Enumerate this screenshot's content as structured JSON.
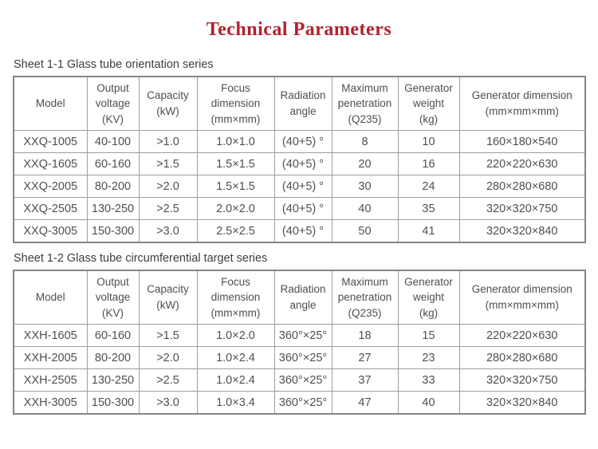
{
  "page": {
    "title": "Technical Parameters",
    "title_color": "#b41f2e",
    "table_text_color": "#4f4f4f",
    "table_border_color": "#9e9e9e"
  },
  "sheets": [
    {
      "caption": "Sheet 1-1 Glass tube orientation series",
      "headers": [
        "Model",
        "Output\nvoltage\n(KV)",
        "Capacity\n(kW)",
        "Focus\ndimension\n(mm×mm)",
        "Radiation\nangle",
        "Maximum\npenetration\n(Q235)",
        "Generator\nweight\n(kg)",
        "Generator dimension\n(mm×mm×mm)"
      ],
      "rows": [
        [
          "XXQ-1005",
          "40-100",
          ">1.0",
          "1.0×1.0",
          "(40+5) °",
          "8",
          "10",
          "160×180×540"
        ],
        [
          "XXQ-1605",
          "60-160",
          ">1.5",
          "1.5×1.5",
          "(40+5) °",
          "20",
          "16",
          "220×220×630"
        ],
        [
          "XXQ-2005",
          "80-200",
          ">2.0",
          "1.5×1.5",
          "(40+5) °",
          "30",
          "24",
          "280×280×680"
        ],
        [
          "XXQ-2505",
          "130-250",
          ">2.5",
          "2.0×2.0",
          "(40+5) °",
          "40",
          "35",
          "320×320×750"
        ],
        [
          "XXQ-3005",
          "150-300",
          ">3.0",
          "2.5×2.5",
          "(40+5) °",
          "50",
          "41",
          "320×320×840"
        ]
      ]
    },
    {
      "caption": "Sheet 1-2 Glass tube circumferential target series",
      "headers": [
        "Model",
        "Output\nvoltage\n(KV)",
        "Capacity\n(kW)",
        "Focus\ndimension\n(mm×mm)",
        "Radiation\nangle",
        "Maximum\npenetration\n(Q235)",
        "Generator\nweight\n(kg)",
        "Generator dimension\n(mm×mm×mm)"
      ],
      "rows": [
        [
          "XXH-1605",
          "60-160",
          ">1.5",
          "1.0×2.0",
          "360°×25°",
          "18",
          "15",
          "220×220×630"
        ],
        [
          "XXH-2005",
          "80-200",
          ">2.0",
          "1.0×2.4",
          "360°×25°",
          "27",
          "23",
          "280×280×680"
        ],
        [
          "XXH-2505",
          "130-250",
          ">2.5",
          "1.0×2.4",
          "360°×25°",
          "37",
          "33",
          "320×320×750"
        ],
        [
          "XXH-3005",
          "150-300",
          ">3.0",
          "1.0×3.4",
          "360°×25°",
          "47",
          "40",
          "320×320×840"
        ]
      ]
    }
  ]
}
